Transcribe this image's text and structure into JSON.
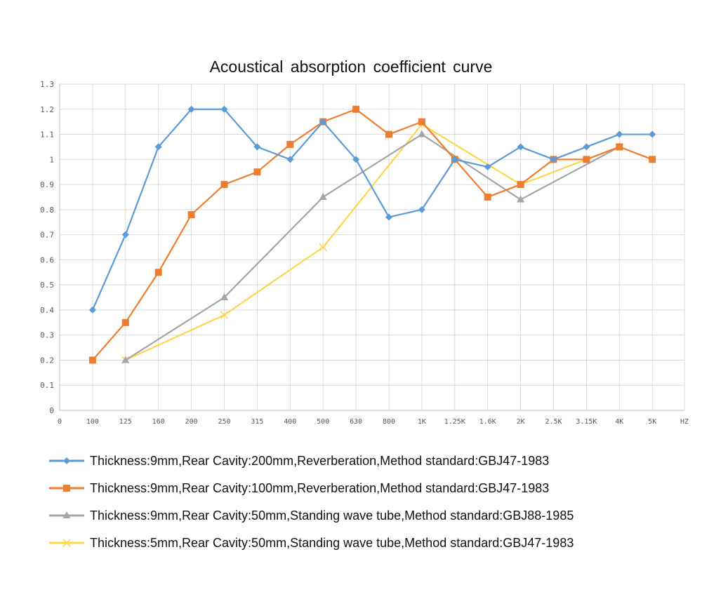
{
  "chart_data": {
    "type": "line",
    "title": "Acoustical  absorption  coefficient curve",
    "xlabel": "",
    "ylabel": "",
    "x_unit_label": "HZ",
    "categories": [
      "0",
      "100",
      "125",
      "160",
      "200",
      "250",
      "315",
      "400",
      "500",
      "630",
      "800",
      "1K",
      "1.25K",
      "1.6K",
      "2K",
      "2.5K",
      "3.15K",
      "4K",
      "5K"
    ],
    "yticks": [
      "0",
      "0.1",
      "0.2",
      "0.3",
      "0.4",
      "0.5",
      "0.6",
      "0.7",
      "0.8",
      "0.9",
      "1",
      "1.1",
      "1.2",
      "1.3"
    ],
    "ylim": [
      0,
      1.3
    ],
    "grid": true,
    "legend_position": "bottom",
    "series": [
      {
        "name": "Thickness:9mm,Rear Cavity:200mm,Reverberation,Method standard:GBJ47-1983",
        "color": "#5b9bd5",
        "marker": "diamond",
        "points": [
          {
            "x": "100",
            "y": 0.4
          },
          {
            "x": "125",
            "y": 0.7
          },
          {
            "x": "160",
            "y": 1.05
          },
          {
            "x": "200",
            "y": 1.2
          },
          {
            "x": "250",
            "y": 1.2
          },
          {
            "x": "315",
            "y": 1.05
          },
          {
            "x": "400",
            "y": 1.0
          },
          {
            "x": "500",
            "y": 1.15
          },
          {
            "x": "630",
            "y": 1.0
          },
          {
            "x": "800",
            "y": 0.77
          },
          {
            "x": "1K",
            "y": 0.8
          },
          {
            "x": "1.25K",
            "y": 1.0
          },
          {
            "x": "1.6K",
            "y": 0.97
          },
          {
            "x": "2K",
            "y": 1.05
          },
          {
            "x": "2.5K",
            "y": 1.0
          },
          {
            "x": "3.15K",
            "y": 1.05
          },
          {
            "x": "4K",
            "y": 1.1
          },
          {
            "x": "5K",
            "y": 1.1
          }
        ]
      },
      {
        "name": "Thickness:9mm,Rear Cavity:100mm,Reverberation,Method standard:GBJ47-1983",
        "color": "#ed7d31",
        "marker": "square",
        "points": [
          {
            "x": "100",
            "y": 0.2
          },
          {
            "x": "125",
            "y": 0.35
          },
          {
            "x": "160",
            "y": 0.55
          },
          {
            "x": "200",
            "y": 0.78
          },
          {
            "x": "250",
            "y": 0.9
          },
          {
            "x": "315",
            "y": 0.95
          },
          {
            "x": "400",
            "y": 1.06
          },
          {
            "x": "500",
            "y": 1.15
          },
          {
            "x": "630",
            "y": 1.2
          },
          {
            "x": "800",
            "y": 1.1
          },
          {
            "x": "1K",
            "y": 1.15
          },
          {
            "x": "1.25K",
            "y": 1.0
          },
          {
            "x": "1.6K",
            "y": 0.85
          },
          {
            "x": "2K",
            "y": 0.9
          },
          {
            "x": "2.5K",
            "y": 1.0
          },
          {
            "x": "3.15K",
            "y": 1.0
          },
          {
            "x": "4K",
            "y": 1.05
          },
          {
            "x": "5K",
            "y": 1.0
          }
        ]
      },
      {
        "name": "Thickness:9mm,Rear Cavity:50mm,Standing wave tube,Method standard:GBJ88-1985",
        "color": "#a5a5a5",
        "marker": "triangle",
        "points": [
          {
            "x": "125",
            "y": 0.2
          },
          {
            "x": "250",
            "y": 0.45
          },
          {
            "x": "500",
            "y": 0.85
          },
          {
            "x": "1K",
            "y": 1.1
          },
          {
            "x": "2K",
            "y": 0.84
          },
          {
            "x": "4K",
            "y": 1.05
          }
        ]
      },
      {
        "name": "Thickness:5mm,Rear Cavity:50mm,Standing wave tube,Method standard:GBJ47-1983",
        "color": "#ffd44f",
        "marker": "x",
        "points": [
          {
            "x": "125",
            "y": 0.2
          },
          {
            "x": "250",
            "y": 0.38
          },
          {
            "x": "500",
            "y": 0.65
          },
          {
            "x": "1K",
            "y": 1.14
          },
          {
            "x": "2K",
            "y": 0.9
          },
          {
            "x": "4K",
            "y": 1.05
          }
        ]
      }
    ]
  }
}
